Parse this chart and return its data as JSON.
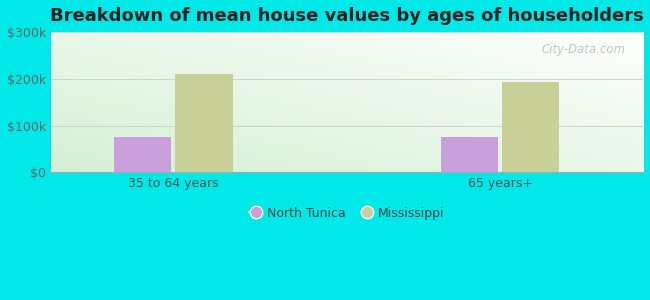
{
  "title": "Breakdown of mean house values by ages of householders",
  "categories": [
    "35 to 64 years",
    "65 years+"
  ],
  "series": [
    {
      "label": "North Tunica",
      "values": [
        75000,
        75000
      ],
      "color": "#c9a0dc"
    },
    {
      "label": "Mississippi",
      "values": [
        210000,
        193000
      ],
      "color": "#c8d098"
    }
  ],
  "ylim": [
    0,
    300000
  ],
  "yticks": [
    0,
    100000,
    200000,
    300000
  ],
  "ytick_labels": [
    "$0",
    "$100k",
    "$200k",
    "$300k"
  ],
  "background_outer": "#00e8e8",
  "title_fontsize": 13,
  "bar_width": 0.28,
  "watermark": "City-Data.com",
  "x_positions": [
    0.5,
    2.1
  ]
}
